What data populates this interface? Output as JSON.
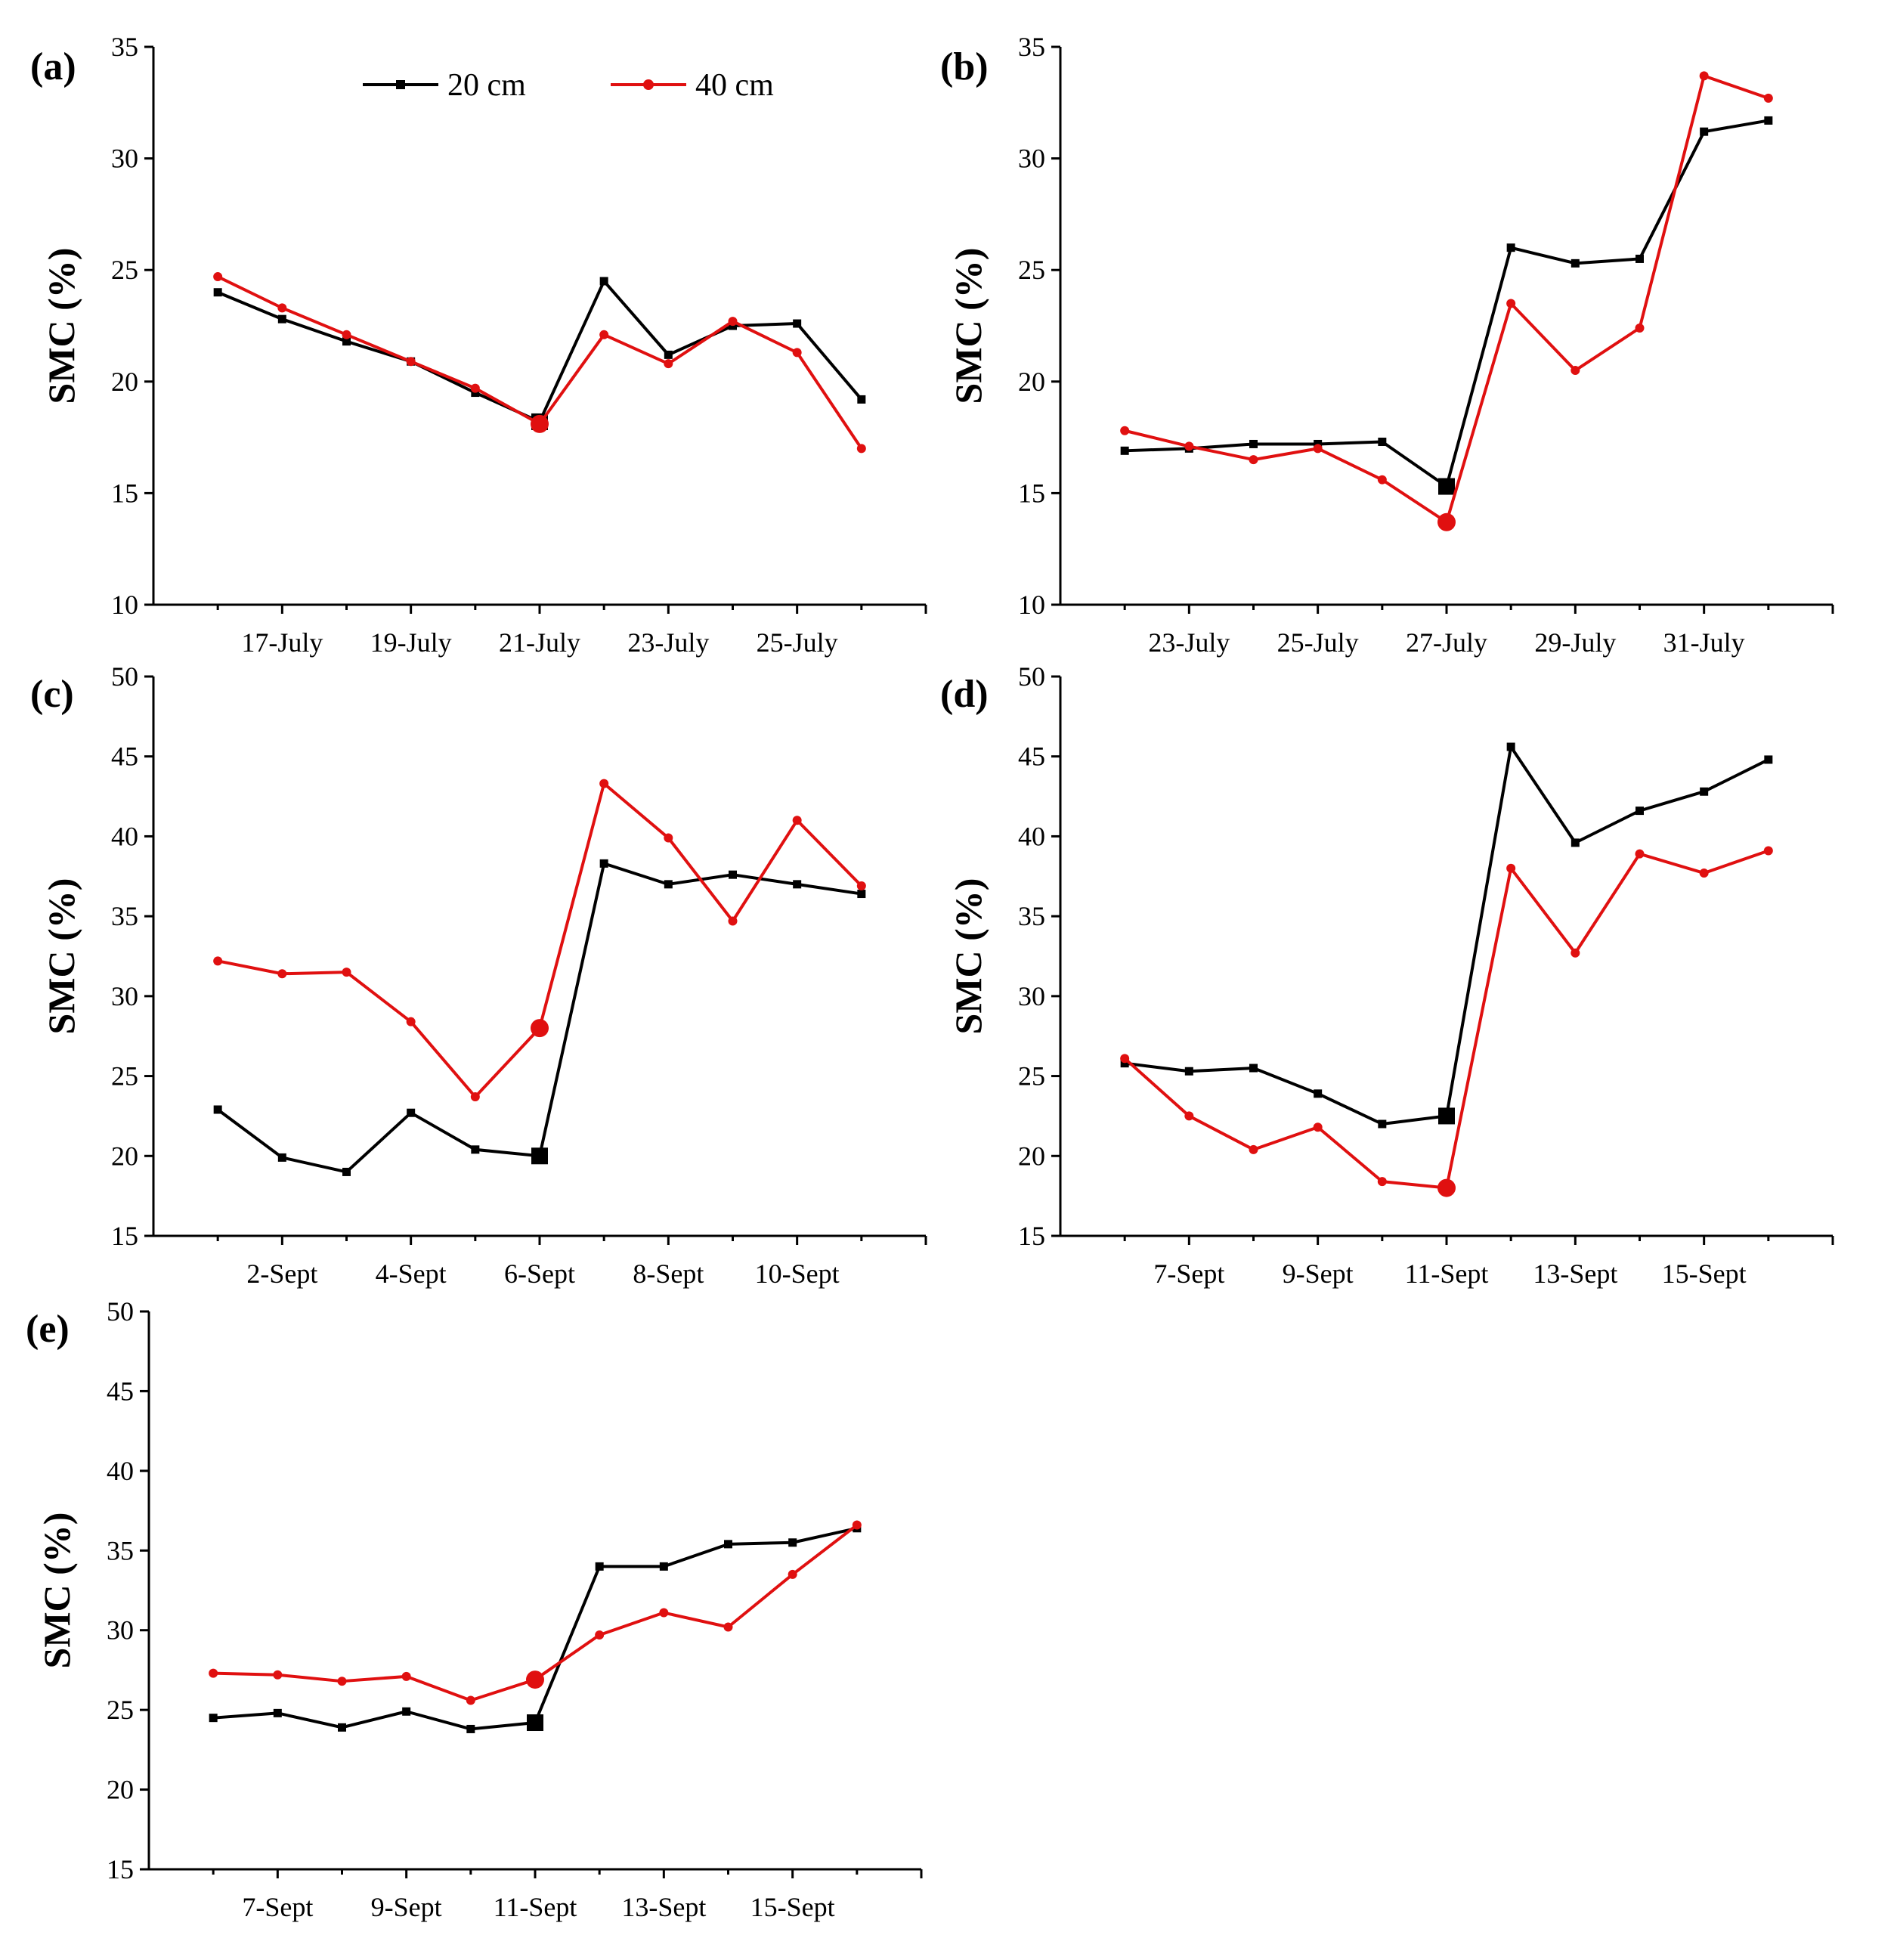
{
  "legend": {
    "entries": [
      {
        "label": "20 cm",
        "color": "#000000",
        "marker": "square"
      },
      {
        "label": "40 cm",
        "color": "#e01010",
        "marker": "circle"
      }
    ]
  },
  "chart_data": [
    {
      "type": "line",
      "panel_label": "(a)",
      "ylabel": "SMC (%)",
      "ylim": [
        10,
        35
      ],
      "yticks": [
        10,
        15,
        20,
        25,
        30,
        35
      ],
      "x": [
        "16-July",
        "17-July",
        "18-July",
        "19-July",
        "20-July",
        "21-July",
        "22-July",
        "23-July",
        "24-July",
        "25-July",
        "26-July"
      ],
      "xtick_labels": [
        "17-July",
        "19-July",
        "21-July",
        "23-July",
        "25-July"
      ],
      "highlight_index": 5,
      "series": [
        {
          "name": "20 cm",
          "color": "#000000",
          "values": [
            24.0,
            22.8,
            21.8,
            20.9,
            19.5,
            18.2,
            24.5,
            21.2,
            22.5,
            22.6,
            19.2
          ]
        },
        {
          "name": "40 cm",
          "color": "#e01010",
          "values": [
            24.7,
            23.3,
            22.1,
            20.9,
            19.7,
            18.1,
            22.1,
            20.8,
            22.7,
            21.3,
            17.0
          ]
        }
      ]
    },
    {
      "type": "line",
      "panel_label": "(b)",
      "ylabel": "SMC (%)",
      "ylim": [
        10,
        35
      ],
      "yticks": [
        10,
        15,
        20,
        25,
        30,
        35
      ],
      "x": [
        "22-July",
        "23-July",
        "24-July",
        "25-July",
        "26-July",
        "27-July",
        "28-July",
        "29-July",
        "30-July",
        "31-July",
        "1-Aug"
      ],
      "xtick_labels": [
        "23-July",
        "25-July",
        "27-July",
        "29-July",
        "31-July"
      ],
      "highlight_index": 5,
      "series": [
        {
          "name": "20 cm",
          "color": "#000000",
          "values": [
            16.9,
            17.0,
            17.2,
            17.2,
            17.3,
            15.3,
            26.0,
            25.3,
            25.5,
            31.2,
            31.7
          ]
        },
        {
          "name": "40 cm",
          "color": "#e01010",
          "values": [
            17.8,
            17.1,
            16.5,
            17.0,
            15.6,
            13.7,
            23.5,
            20.5,
            22.4,
            33.7,
            32.7
          ]
        }
      ]
    },
    {
      "type": "line",
      "panel_label": "(c)",
      "ylabel": "SMC (%)",
      "ylim": [
        15,
        50
      ],
      "yticks": [
        15,
        20,
        25,
        30,
        35,
        40,
        45,
        50
      ],
      "x": [
        "1-Sept",
        "2-Sept",
        "3-Sept",
        "4-Sept",
        "5-Sept",
        "6-Sept",
        "7-Sept",
        "8-Sept",
        "9-Sept",
        "10-Sept",
        "11-Sept"
      ],
      "xtick_labels": [
        "2-Sept",
        "4-Sept",
        "6-Sept",
        "8-Sept",
        "10-Sept"
      ],
      "highlight_index": 5,
      "series": [
        {
          "name": "20 cm",
          "color": "#000000",
          "values": [
            22.9,
            19.9,
            19.0,
            22.7,
            20.4,
            20.0,
            38.3,
            37.0,
            37.6,
            37.0,
            36.4
          ]
        },
        {
          "name": "40 cm",
          "color": "#e01010",
          "values": [
            32.2,
            31.4,
            31.5,
            28.4,
            23.7,
            28.0,
            43.3,
            39.9,
            34.7,
            41.0,
            36.9
          ]
        }
      ]
    },
    {
      "type": "line",
      "panel_label": "(d)",
      "ylabel": "SMC (%)",
      "ylim": [
        15,
        50
      ],
      "yticks": [
        15,
        20,
        25,
        30,
        35,
        40,
        45,
        50
      ],
      "x": [
        "6-Sept",
        "7-Sept",
        "8-Sept",
        "9-Sept",
        "10-Sept",
        "11-Sept",
        "12-Sept",
        "13-Sept",
        "14-Sept",
        "15-Sept",
        "16-Sept"
      ],
      "xtick_labels": [
        "7-Sept",
        "9-Sept",
        "11-Sept",
        "13-Sept",
        "15-Sept"
      ],
      "highlight_index": 5,
      "series": [
        {
          "name": "20 cm",
          "color": "#000000",
          "values": [
            25.8,
            25.3,
            25.5,
            23.9,
            22.0,
            22.5,
            45.6,
            39.6,
            41.6,
            42.8,
            44.8
          ]
        },
        {
          "name": "40 cm",
          "color": "#e01010",
          "values": [
            26.1,
            22.5,
            20.4,
            21.8,
            18.4,
            18.0,
            38.0,
            32.7,
            38.9,
            37.7,
            39.1
          ]
        }
      ]
    },
    {
      "type": "line",
      "panel_label": "(e)",
      "ylabel": "SMC (%)",
      "ylim": [
        15,
        50
      ],
      "yticks": [
        15,
        20,
        25,
        30,
        35,
        40,
        45,
        50
      ],
      "x": [
        "6-Sept",
        "7-Sept",
        "8-Sept",
        "9-Sept",
        "10-Sept",
        "11-Sept",
        "12-Sept",
        "13-Sept",
        "14-Sept",
        "15-Sept",
        "16-Sept"
      ],
      "xtick_labels": [
        "7-Sept",
        "9-Sept",
        "11-Sept",
        "13-Sept",
        "15-Sept"
      ],
      "highlight_index": 5,
      "series": [
        {
          "name": "20 cm",
          "color": "#000000",
          "values": [
            24.5,
            24.8,
            23.9,
            24.9,
            23.8,
            24.2,
            34.0,
            34.0,
            35.4,
            35.5,
            36.4
          ]
        },
        {
          "name": "40 cm",
          "color": "#e01010",
          "values": [
            27.3,
            27.2,
            26.8,
            27.1,
            25.6,
            26.9,
            29.7,
            31.1,
            30.2,
            33.5,
            36.6
          ]
        }
      ]
    }
  ]
}
